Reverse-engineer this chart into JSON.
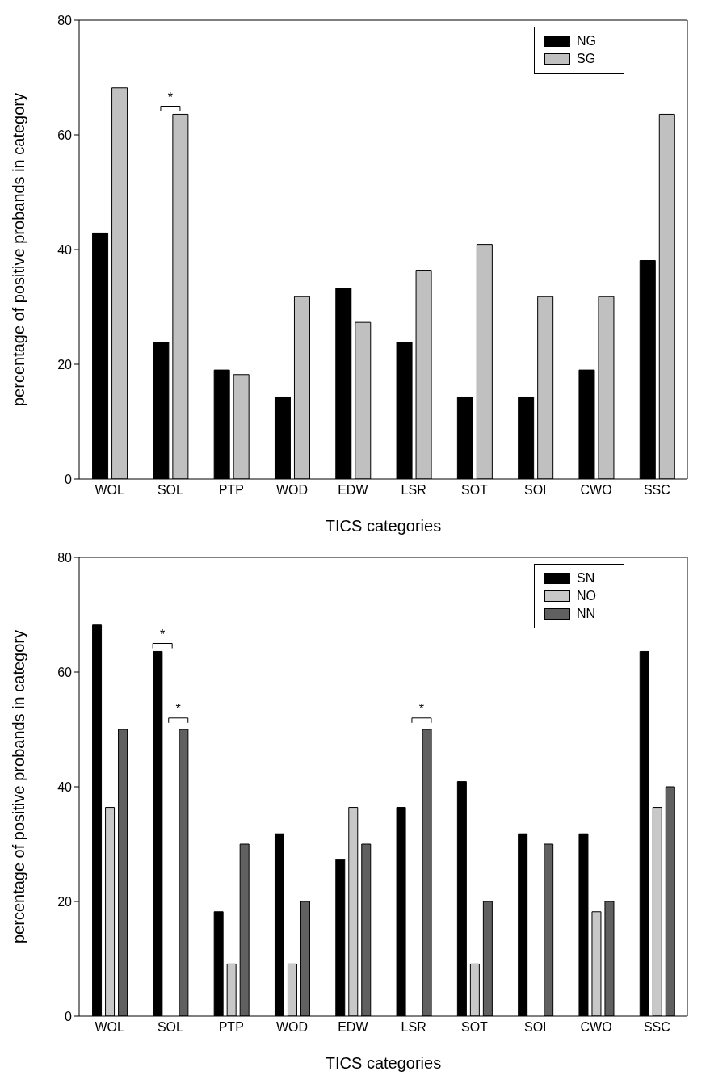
{
  "chart_data": [
    {
      "type": "bar",
      "xlabel": "TICS categories",
      "ylabel": "percentage of positive probands in category",
      "categories": [
        "WOL",
        "SOL",
        "PTP",
        "WOD",
        "EDW",
        "LSR",
        "SOT",
        "SOI",
        "CWO",
        "SSC"
      ],
      "series": [
        {
          "name": "NG",
          "color": "#000000",
          "values": [
            42.9,
            23.8,
            19.0,
            14.3,
            33.3,
            23.8,
            14.3,
            14.3,
            19.0,
            38.1
          ]
        },
        {
          "name": "SG",
          "color": "#c0c0c0",
          "values": [
            68.2,
            63.6,
            18.2,
            31.8,
            27.3,
            36.4,
            40.9,
            31.8,
            31.8,
            63.6
          ]
        }
      ],
      "ylim": [
        0,
        80
      ],
      "yticks": [
        0,
        20,
        40,
        60,
        80
      ],
      "grid": false,
      "legend": "top right",
      "annotations": [
        "*"
      ]
    },
    {
      "type": "bar",
      "xlabel": "TICS categories",
      "ylabel": "percentage of positive probands in category",
      "categories": [
        "WOL",
        "SOL",
        "PTP",
        "WOD",
        "EDW",
        "LSR",
        "SOT",
        "SOI",
        "CWO",
        "SSC"
      ],
      "series": [
        {
          "name": "SN",
          "color": "#000000",
          "values": [
            68.2,
            63.6,
            18.2,
            31.8,
            27.3,
            36.4,
            40.9,
            31.8,
            31.8,
            63.6
          ]
        },
        {
          "name": "NO",
          "color": "#c8c8c8",
          "values": [
            36.4,
            0,
            9.1,
            9.1,
            36.4,
            0,
            9.1,
            0,
            18.2,
            36.4
          ]
        },
        {
          "name": "NN",
          "color": "#606060",
          "values": [
            50,
            50,
            30,
            20,
            30,
            50,
            20,
            30,
            20,
            40
          ]
        }
      ],
      "ylim": [
        0,
        80
      ],
      "yticks": [
        0,
        20,
        40,
        60,
        80
      ],
      "grid": false,
      "legend": "top right",
      "annotations": [
        "*",
        "*",
        "*"
      ]
    }
  ]
}
